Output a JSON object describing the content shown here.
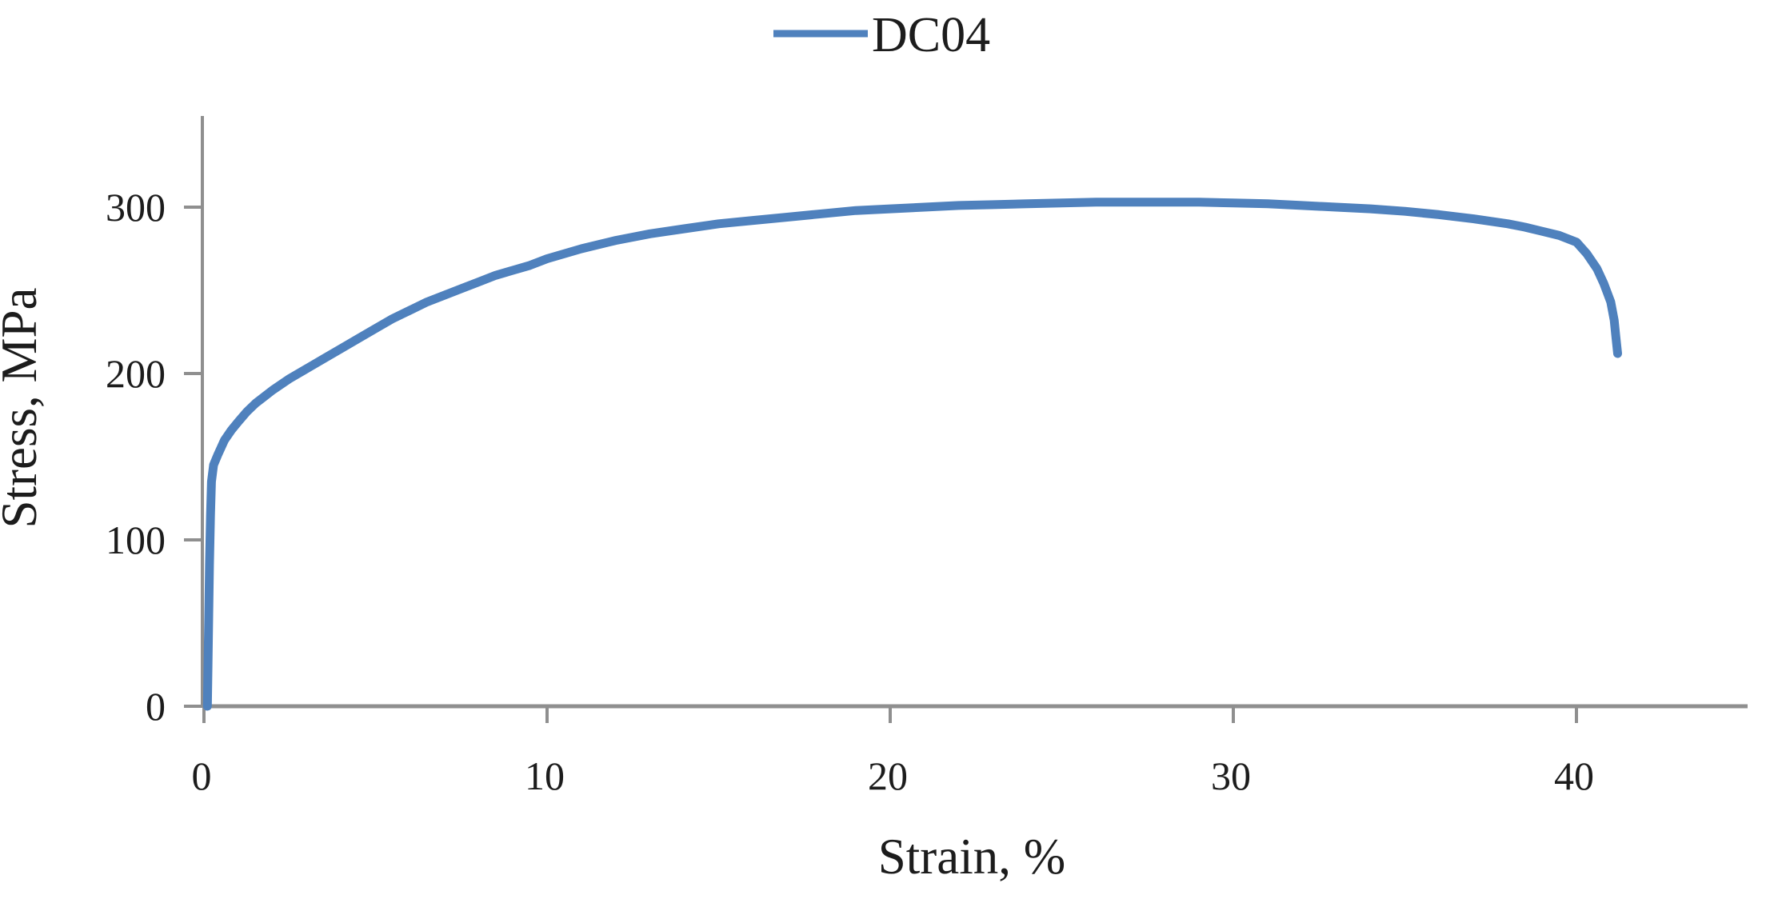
{
  "chart_data": {
    "type": "line",
    "title": "",
    "xlabel": "Strain, %",
    "ylabel": "Stress, MPa",
    "xlim": [
      0,
      45
    ],
    "ylim": [
      0,
      355
    ],
    "x_ticks": [
      0,
      10,
      20,
      30,
      40
    ],
    "y_ticks": [
      0,
      100,
      200,
      300
    ],
    "grid": false,
    "legend_position": "top-center",
    "series": [
      {
        "name": "DC04",
        "color": "#4f81bd",
        "points": [
          [
            0.1,
            0
          ],
          [
            0.12,
            25
          ],
          [
            0.14,
            55
          ],
          [
            0.16,
            85
          ],
          [
            0.19,
            115
          ],
          [
            0.22,
            135
          ],
          [
            0.28,
            145
          ],
          [
            0.4,
            151
          ],
          [
            0.6,
            160
          ],
          [
            0.8,
            166
          ],
          [
            1.0,
            171
          ],
          [
            1.25,
            177
          ],
          [
            1.5,
            182
          ],
          [
            1.75,
            186
          ],
          [
            2.0,
            190
          ],
          [
            2.5,
            197
          ],
          [
            3.0,
            203
          ],
          [
            3.5,
            209
          ],
          [
            4.0,
            215
          ],
          [
            4.5,
            221
          ],
          [
            5.0,
            227
          ],
          [
            5.5,
            233
          ],
          [
            6.0,
            238
          ],
          [
            6.5,
            243
          ],
          [
            7.0,
            247
          ],
          [
            7.5,
            251
          ],
          [
            8.0,
            255
          ],
          [
            8.5,
            259
          ],
          [
            9.0,
            262
          ],
          [
            9.5,
            265
          ],
          [
            10.0,
            269
          ],
          [
            11.0,
            275
          ],
          [
            12.0,
            280
          ],
          [
            13.0,
            284
          ],
          [
            14.0,
            287
          ],
          [
            15.0,
            290
          ],
          [
            16.0,
            292
          ],
          [
            17.0,
            294
          ],
          [
            18.0,
            296
          ],
          [
            19.0,
            298
          ],
          [
            20.0,
            299
          ],
          [
            21.0,
            300
          ],
          [
            22.0,
            301
          ],
          [
            23.0,
            301.5
          ],
          [
            24.0,
            302
          ],
          [
            25.0,
            302.5
          ],
          [
            26.0,
            303
          ],
          [
            27.0,
            303
          ],
          [
            28.0,
            303
          ],
          [
            29.0,
            303
          ],
          [
            30.0,
            302.5
          ],
          [
            31.0,
            302
          ],
          [
            32.0,
            301
          ],
          [
            33.0,
            300
          ],
          [
            34.0,
            299
          ],
          [
            35.0,
            297.5
          ],
          [
            36.0,
            295.5
          ],
          [
            37.0,
            293
          ],
          [
            38.0,
            290
          ],
          [
            38.5,
            288
          ],
          [
            39.0,
            285.5
          ],
          [
            39.5,
            283
          ],
          [
            40.0,
            279
          ],
          [
            40.3,
            272
          ],
          [
            40.6,
            263
          ],
          [
            40.8,
            254
          ],
          [
            41.0,
            243
          ],
          [
            41.1,
            232
          ],
          [
            41.15,
            222
          ],
          [
            41.2,
            212
          ]
        ]
      }
    ]
  },
  "colors": {
    "curve": "#4f81bd",
    "axis": "#8f8f8f",
    "text": "#1c1c1c",
    "background": "#ffffff"
  }
}
